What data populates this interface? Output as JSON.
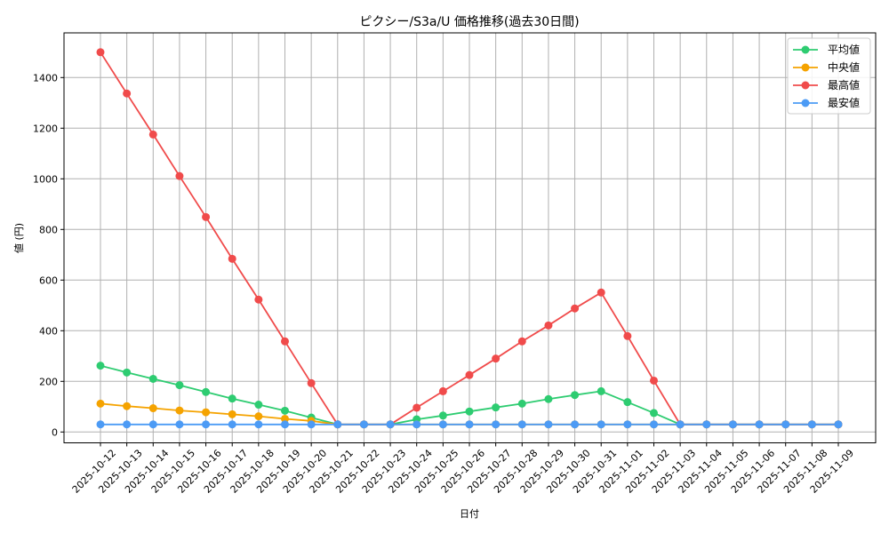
{
  "chart_data": {
    "type": "line",
    "title": "ピクシー/S3a/U 価格推移(過去30日間)",
    "xlabel": "日付",
    "ylabel": "値 (円)",
    "ylim": [
      -45,
      1575
    ],
    "yticks": [
      0,
      200,
      400,
      600,
      800,
      1000,
      1200,
      1400
    ],
    "grid": true,
    "legend_position": "upper right",
    "x": [
      "2025-10-12",
      "2025-10-13",
      "2025-10-14",
      "2025-10-15",
      "2025-10-16",
      "2025-10-17",
      "2025-10-18",
      "2025-10-19",
      "2025-10-20",
      "2025-10-21",
      "2025-10-22",
      "2025-10-23",
      "2025-10-24",
      "2025-10-25",
      "2025-10-26",
      "2025-10-27",
      "2025-10-28",
      "2025-10-29",
      "2025-10-30",
      "2025-10-31",
      "2025-11-01",
      "2025-11-02",
      "2025-11-03",
      "2025-11-04",
      "2025-11-05",
      "2025-11-06",
      "2025-11-07",
      "2025-11-08",
      "2025-11-09"
    ],
    "series": [
      {
        "name": "平均値",
        "color": "#2ecc71",
        "values": [
          262,
          235,
          210,
          185,
          158,
          132,
          108,
          84,
          57,
          30,
          30,
          30,
          50,
          65,
          81,
          97,
          112,
          130,
          146,
          161,
          118,
          75,
          30,
          30,
          30,
          30,
          30,
          30,
          30
        ]
      },
      {
        "name": "中央値",
        "color": "#f5a300",
        "values": [
          112,
          102,
          94,
          85,
          78,
          70,
          62,
          52,
          44,
          30,
          30,
          30,
          30,
          30,
          30,
          30,
          30,
          30,
          30,
          30,
          30,
          30,
          30,
          30,
          30,
          30,
          30,
          30,
          30
        ]
      },
      {
        "name": "最高値",
        "color": "#f04b4b",
        "values": [
          1500,
          1337,
          1175,
          1011,
          849,
          684,
          523,
          358,
          193,
          30,
          30,
          30,
          96,
          161,
          225,
          290,
          358,
          421,
          488,
          551,
          379,
          203,
          30,
          30,
          30,
          30,
          30,
          30,
          30
        ]
      },
      {
        "name": "最安値",
        "color": "#4c9bf5",
        "values": [
          30,
          30,
          30,
          30,
          30,
          30,
          30,
          30,
          30,
          30,
          30,
          30,
          30,
          30,
          30,
          30,
          30,
          30,
          30,
          30,
          30,
          30,
          30,
          30,
          30,
          30,
          30,
          30,
          30
        ]
      }
    ]
  }
}
